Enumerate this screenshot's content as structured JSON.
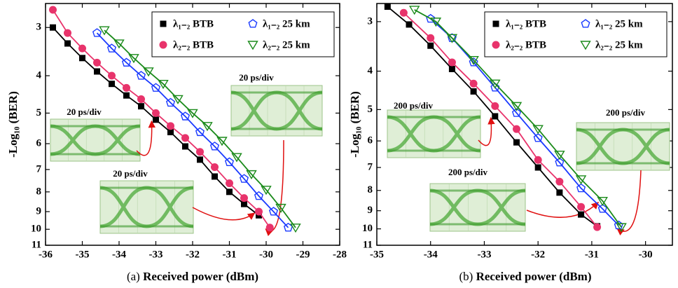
{
  "chart_data": [
    {
      "type": "line",
      "panel_label": "(a)",
      "x_label": "Received power (dBm)",
      "y_label": "-Log₁₀ (BER)",
      "xlim": [
        -36,
        -28
      ],
      "xticks": [
        -36,
        -35,
        -34,
        -33,
        -32,
        -31,
        -30,
        -29,
        -28
      ],
      "ylim": [
        2.6,
        11
      ],
      "yticks": [
        3,
        4,
        5,
        6,
        7,
        8,
        9,
        10,
        11
      ],
      "y_scale": "log",
      "y_inverted": true,
      "legend": "upper right",
      "series": [
        {
          "name": "λ₁₋₂ BTB",
          "color": "#000000",
          "marker": "square",
          "x": [
            -35.8,
            -35.4,
            -35.0,
            -34.6,
            -34.2,
            -33.8,
            -33.4,
            -33.0,
            -32.6,
            -32.2,
            -31.8,
            -31.4,
            -31.0,
            -30.6,
            -30.2
          ],
          "values": [
            3.0,
            3.3,
            3.6,
            3.9,
            4.2,
            4.5,
            4.8,
            5.2,
            5.6,
            6.1,
            6.6,
            7.3,
            8.0,
            8.6,
            9.2
          ]
        },
        {
          "name": "λ₂₋₂ BTB",
          "color": "#e8336b",
          "marker": "circle",
          "x": [
            -35.8,
            -35.4,
            -35.0,
            -34.6,
            -34.2,
            -33.8,
            -33.4,
            -33.0,
            -32.6,
            -32.2,
            -31.8,
            -31.4,
            -31.0,
            -30.6,
            -30.2,
            -29.9
          ],
          "values": [
            2.7,
            3.1,
            3.4,
            3.7,
            4.0,
            4.3,
            4.6,
            5.0,
            5.4,
            5.8,
            6.3,
            6.9,
            7.6,
            8.3,
            9.0,
            9.9
          ]
        },
        {
          "name": "λ₁₋₂  25 km",
          "color": "#1a3aff",
          "marker": "pentagon",
          "x": [
            -34.6,
            -34.2,
            -33.8,
            -33.4,
            -33.0,
            -32.6,
            -32.2,
            -31.8,
            -31.4,
            -31.0,
            -30.6,
            -30.2,
            -29.8,
            -29.4
          ],
          "values": [
            3.1,
            3.4,
            3.7,
            4.0,
            4.3,
            4.7,
            5.1,
            5.6,
            6.1,
            6.7,
            7.4,
            8.2,
            9.0,
            9.9
          ]
        },
        {
          "name": "λ₂₋₂  25 km",
          "color": "#1a8a1a",
          "marker": "triangle",
          "x": [
            -34.4,
            -34.0,
            -33.6,
            -33.2,
            -32.8,
            -32.4,
            -32.0,
            -31.6,
            -31.2,
            -30.8,
            -30.4,
            -30.0,
            -29.6,
            -29.2
          ],
          "values": [
            3.05,
            3.3,
            3.6,
            3.9,
            4.2,
            4.6,
            5.0,
            5.4,
            5.9,
            6.5,
            7.2,
            7.9,
            8.8,
            9.9
          ]
        }
      ],
      "insets": [
        "20 ps/div",
        "20 ps/div",
        "20 ps/div"
      ]
    },
    {
      "type": "line",
      "panel_label": "(b)",
      "x_label": "Received power (dBm)",
      "y_label": "-Log₁₀ (BER)",
      "xlim": [
        -35,
        -29.5
      ],
      "xticks": [
        -35,
        -34,
        -33,
        -32,
        -31,
        -30
      ],
      "ylim": [
        2.7,
        11
      ],
      "yticks": [
        3,
        4,
        5,
        6,
        7,
        8,
        9,
        10,
        11
      ],
      "y_scale": "log",
      "y_inverted": true,
      "legend": "upper right",
      "series": [
        {
          "name": "λ₁₋₂ BTB",
          "color": "#000000",
          "marker": "square",
          "x": [
            -34.8,
            -34.4,
            -34.0,
            -33.6,
            -33.2,
            -32.8,
            -32.4,
            -32.0,
            -31.6,
            -31.2,
            -30.9
          ],
          "values": [
            2.75,
            3.05,
            3.45,
            3.95,
            4.5,
            5.2,
            6.05,
            7.0,
            8.1,
            9.2,
            9.85
          ]
        },
        {
          "name": "λ₂₋₂ BTB",
          "color": "#e8336b",
          "marker": "circle",
          "x": [
            -34.5,
            -34.0,
            -33.6,
            -33.2,
            -32.8,
            -32.4,
            -32.0,
            -31.6,
            -31.2,
            -30.9
          ],
          "values": [
            2.85,
            3.3,
            3.8,
            4.3,
            4.9,
            5.6,
            6.7,
            7.6,
            8.8,
            9.9
          ]
        },
        {
          "name": "λ₁₋₂ 25 km",
          "color": "#1a3aff",
          "marker": "pentagon",
          "x": [
            -34.0,
            -33.6,
            -33.2,
            -32.8,
            -32.4,
            -32.0,
            -31.6,
            -31.2,
            -30.8,
            -30.5
          ],
          "values": [
            2.95,
            3.3,
            3.8,
            4.4,
            5.1,
            5.9,
            6.8,
            7.9,
            8.9,
            9.8
          ]
        },
        {
          "name": "λ₂₋₂ 25 km",
          "color": "#1a8a1a",
          "marker": "triangle",
          "x": [
            -34.3,
            -33.9,
            -33.6,
            -33.2,
            -32.8,
            -32.4,
            -32.0,
            -31.6,
            -31.2,
            -30.8,
            -30.45
          ],
          "values": [
            2.8,
            3.0,
            3.3,
            3.75,
            4.3,
            4.9,
            5.6,
            6.5,
            7.5,
            8.5,
            9.9
          ]
        }
      ],
      "insets": [
        "200 ps/div",
        "200 ps/div",
        "200 ps/div"
      ]
    }
  ]
}
